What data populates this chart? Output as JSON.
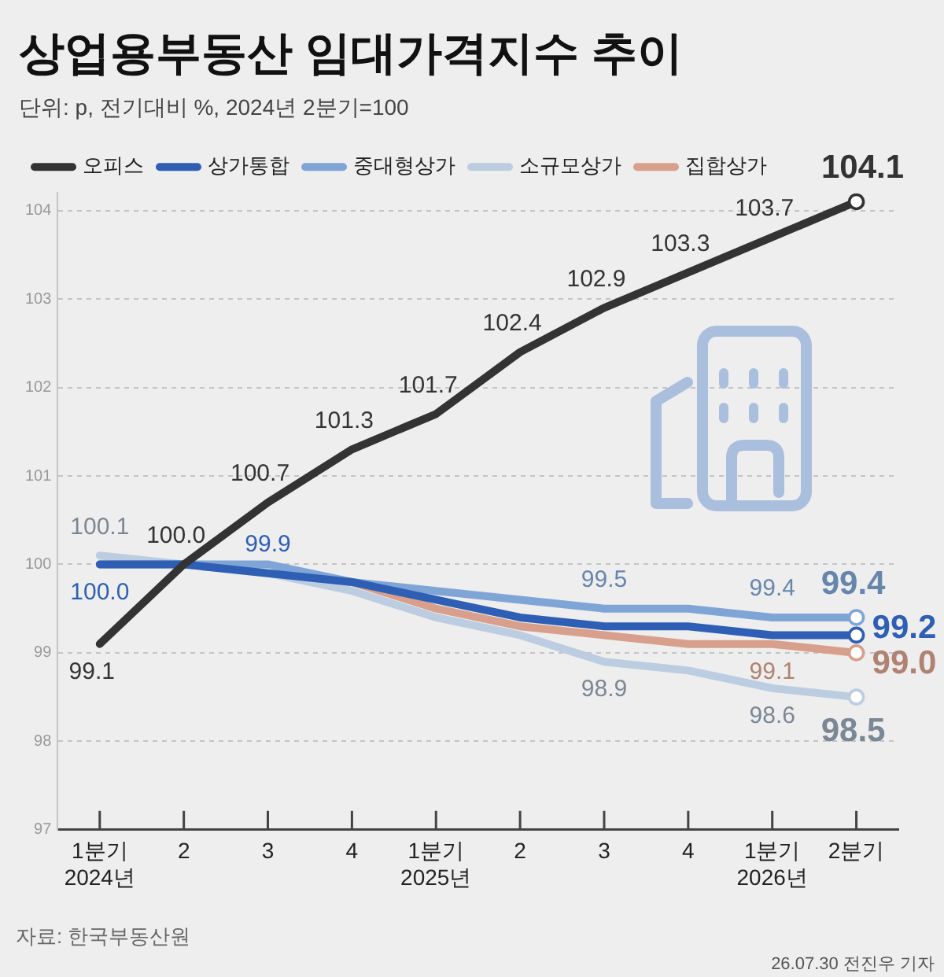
{
  "chart_data": {
    "type": "line",
    "title": "상업용부동산 임대가격지수 추이",
    "subtitle": "단위: p, 전기대비 %, 2024년 2분기=100",
    "annotations": [
      "자료: 한국부동산원",
      "26.07.30 전진우 기자"
    ],
    "categories": [
      "1분기\n2024년",
      "2",
      "3",
      "4",
      "1분기\n2025년",
      "2",
      "3",
      "4",
      "1분기\n2026년",
      "2분기"
    ],
    "ylim": [
      97,
      104.2
    ],
    "yticks": [
      97,
      98,
      99,
      100,
      101,
      102,
      103,
      104
    ],
    "grid": "y",
    "legend": "top left",
    "marker": "none",
    "line_style": "solid",
    "series": [
      {
        "name": "오피스",
        "color": "#333333",
        "values": [
          99.1,
          100.0,
          100.7,
          101.3,
          101.7,
          102.4,
          102.9,
          103.3,
          103.7,
          104.1
        ],
        "value_labels": [
          "99.1",
          "100.0",
          "100.7",
          "101.3",
          "101.7",
          "102.4",
          "102.9",
          "103.3",
          "103.7",
          "104.1"
        ]
      },
      {
        "name": "상가통합",
        "color": "#2f5fb4",
        "values": [
          100.0,
          100.0,
          99.9,
          99.8,
          99.6,
          99.4,
          99.3,
          99.3,
          99.2,
          99.2
        ],
        "value_labels": [
          "100.0",
          null,
          "99.9",
          null,
          null,
          null,
          null,
          null,
          null,
          "99.2"
        ]
      },
      {
        "name": "중대형상가",
        "color": "#7fa5d6",
        "values": [
          100.0,
          100.0,
          100.0,
          99.8,
          99.7,
          99.6,
          99.5,
          99.5,
          99.4,
          99.4
        ],
        "value_labels": [
          null,
          null,
          null,
          null,
          null,
          null,
          "99.5",
          null,
          "99.4",
          "99.4"
        ]
      },
      {
        "name": "소규모상가",
        "color": "#bccde2",
        "values": [
          100.1,
          100.0,
          99.9,
          99.7,
          99.4,
          99.2,
          98.9,
          98.8,
          98.6,
          98.5
        ],
        "value_labels": [
          "100.1",
          null,
          null,
          null,
          null,
          null,
          "98.9",
          null,
          "98.6",
          "98.5"
        ]
      },
      {
        "name": "집합상가",
        "color": "#d8a08c",
        "values": [
          null,
          null,
          99.9,
          99.8,
          99.5,
          99.3,
          99.2,
          99.1,
          99.1,
          99.0
        ],
        "value_labels": [
          null,
          null,
          null,
          null,
          null,
          null,
          null,
          null,
          "99.1",
          "99.0"
        ]
      }
    ]
  }
}
